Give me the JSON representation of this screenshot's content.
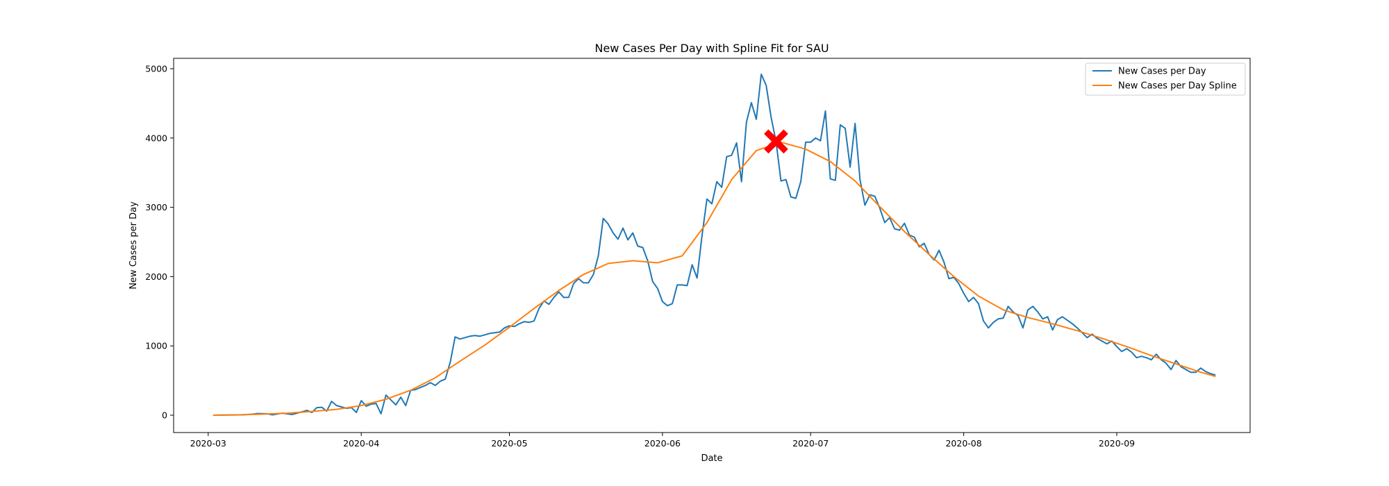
{
  "chart_data": {
    "type": "line",
    "title": "New Cases Per Day with Spline Fit for SAU",
    "xlabel": "Date",
    "ylabel": "New Cases per Day",
    "x_axis": {
      "type": "date",
      "range": [
        "2020-02-23",
        "2020-09-28"
      ],
      "ticks": [
        "2020-03-01",
        "2020-04-01",
        "2020-05-01",
        "2020-06-01",
        "2020-07-01",
        "2020-08-01",
        "2020-09-01"
      ],
      "tick_labels": [
        "2020-03",
        "2020-04",
        "2020-05",
        "2020-06",
        "2020-07",
        "2020-08",
        "2020-09"
      ]
    },
    "y_axis": {
      "range": [
        -250,
        5150
      ],
      "ticks": [
        0,
        1000,
        2000,
        3000,
        4000,
        5000
      ],
      "tick_labels": [
        "0",
        "1000",
        "2000",
        "3000",
        "4000",
        "5000"
      ]
    },
    "grid": false,
    "legend_position": "top-right",
    "colors": {
      "raw": "#1f77b4",
      "spline": "#ff7f0e",
      "peak_marker": "#ff0000"
    },
    "series": [
      {
        "name": "New Cases per Day",
        "color": "#1f77b4",
        "points": [
          [
            "2020-03-02",
            0
          ],
          [
            "2020-03-05",
            2
          ],
          [
            "2020-03-08",
            5
          ],
          [
            "2020-03-10",
            15
          ],
          [
            "2020-03-11",
            25
          ],
          [
            "2020-03-13",
            20
          ],
          [
            "2020-03-14",
            5
          ],
          [
            "2020-03-16",
            30
          ],
          [
            "2020-03-18",
            10
          ],
          [
            "2020-03-20",
            50
          ],
          [
            "2020-03-21",
            70
          ],
          [
            "2020-03-22",
            40
          ],
          [
            "2020-03-23",
            110
          ],
          [
            "2020-03-24",
            115
          ],
          [
            "2020-03-25",
            60
          ],
          [
            "2020-03-26",
            200
          ],
          [
            "2020-03-27",
            140
          ],
          [
            "2020-03-28",
            120
          ],
          [
            "2020-03-29",
            100
          ],
          [
            "2020-03-30",
            110
          ],
          [
            "2020-03-31",
            40
          ],
          [
            "2020-04-01",
            210
          ],
          [
            "2020-04-02",
            130
          ],
          [
            "2020-04-03",
            160
          ],
          [
            "2020-04-04",
            170
          ],
          [
            "2020-04-05",
            20
          ],
          [
            "2020-04-06",
            290
          ],
          [
            "2020-04-07",
            220
          ],
          [
            "2020-04-08",
            150
          ],
          [
            "2020-04-09",
            260
          ],
          [
            "2020-04-10",
            140
          ],
          [
            "2020-04-11",
            360
          ],
          [
            "2020-04-12",
            370
          ],
          [
            "2020-04-13",
            400
          ],
          [
            "2020-04-14",
            430
          ],
          [
            "2020-04-15",
            470
          ],
          [
            "2020-04-16",
            430
          ],
          [
            "2020-04-17",
            490
          ],
          [
            "2020-04-18",
            520
          ],
          [
            "2020-04-19",
            760
          ],
          [
            "2020-04-20",
            1130
          ],
          [
            "2020-04-21",
            1100
          ],
          [
            "2020-04-22",
            1120
          ],
          [
            "2020-04-23",
            1140
          ],
          [
            "2020-04-24",
            1150
          ],
          [
            "2020-04-25",
            1140
          ],
          [
            "2020-04-26",
            1160
          ],
          [
            "2020-04-27",
            1180
          ],
          [
            "2020-04-28",
            1190
          ],
          [
            "2020-04-29",
            1200
          ],
          [
            "2020-04-30",
            1260
          ],
          [
            "2020-05-01",
            1290
          ],
          [
            "2020-05-02",
            1280
          ],
          [
            "2020-05-03",
            1320
          ],
          [
            "2020-05-04",
            1350
          ],
          [
            "2020-05-05",
            1340
          ],
          [
            "2020-05-06",
            1360
          ],
          [
            "2020-05-07",
            1540
          ],
          [
            "2020-05-08",
            1650
          ],
          [
            "2020-05-09",
            1600
          ],
          [
            "2020-05-10",
            1700
          ],
          [
            "2020-05-11",
            1780
          ],
          [
            "2020-05-12",
            1700
          ],
          [
            "2020-05-13",
            1700
          ],
          [
            "2020-05-14",
            1900
          ],
          [
            "2020-05-15",
            1970
          ],
          [
            "2020-05-16",
            1910
          ],
          [
            "2020-05-17",
            1910
          ],
          [
            "2020-05-18",
            2030
          ],
          [
            "2020-05-19",
            2300
          ],
          [
            "2020-05-20",
            2840
          ],
          [
            "2020-05-21",
            2760
          ],
          [
            "2020-05-22",
            2630
          ],
          [
            "2020-05-23",
            2540
          ],
          [
            "2020-05-24",
            2700
          ],
          [
            "2020-05-25",
            2530
          ],
          [
            "2020-05-26",
            2630
          ],
          [
            "2020-05-27",
            2440
          ],
          [
            "2020-05-28",
            2420
          ],
          [
            "2020-05-29",
            2230
          ],
          [
            "2020-05-30",
            1930
          ],
          [
            "2020-05-31",
            1830
          ],
          [
            "2020-06-01",
            1640
          ],
          [
            "2020-06-02",
            1580
          ],
          [
            "2020-06-03",
            1610
          ],
          [
            "2020-06-04",
            1880
          ],
          [
            "2020-06-05",
            1880
          ],
          [
            "2020-06-06",
            1870
          ],
          [
            "2020-06-07",
            2170
          ],
          [
            "2020-06-08",
            1980
          ],
          [
            "2020-06-09",
            2590
          ],
          [
            "2020-06-10",
            3120
          ],
          [
            "2020-06-11",
            3050
          ],
          [
            "2020-06-12",
            3370
          ],
          [
            "2020-06-13",
            3290
          ],
          [
            "2020-06-14",
            3730
          ],
          [
            "2020-06-15",
            3750
          ],
          [
            "2020-06-16",
            3930
          ],
          [
            "2020-06-17",
            3370
          ],
          [
            "2020-06-18",
            4230
          ],
          [
            "2020-06-19",
            4510
          ],
          [
            "2020-06-20",
            4270
          ],
          [
            "2020-06-21",
            4920
          ],
          [
            "2020-06-22",
            4760
          ],
          [
            "2020-06-23",
            4300
          ],
          [
            "2020-06-24",
            3950
          ],
          [
            "2020-06-25",
            3380
          ],
          [
            "2020-06-26",
            3400
          ],
          [
            "2020-06-27",
            3150
          ],
          [
            "2020-06-28",
            3130
          ],
          [
            "2020-06-29",
            3370
          ],
          [
            "2020-06-30",
            3940
          ],
          [
            "2020-07-01",
            3940
          ],
          [
            "2020-07-02",
            4000
          ],
          [
            "2020-07-03",
            3960
          ],
          [
            "2020-07-04",
            4390
          ],
          [
            "2020-07-05",
            3410
          ],
          [
            "2020-07-06",
            3390
          ],
          [
            "2020-07-07",
            4190
          ],
          [
            "2020-07-08",
            4140
          ],
          [
            "2020-07-09",
            3580
          ],
          [
            "2020-07-10",
            4210
          ],
          [
            "2020-07-11",
            3400
          ],
          [
            "2020-07-12",
            3030
          ],
          [
            "2020-07-13",
            3180
          ],
          [
            "2020-07-14",
            3160
          ],
          [
            "2020-07-15",
            2990
          ],
          [
            "2020-07-16",
            2780
          ],
          [
            "2020-07-17",
            2850
          ],
          [
            "2020-07-18",
            2690
          ],
          [
            "2020-07-19",
            2670
          ],
          [
            "2020-07-20",
            2770
          ],
          [
            "2020-07-21",
            2600
          ],
          [
            "2020-07-22",
            2570
          ],
          [
            "2020-07-23",
            2430
          ],
          [
            "2020-07-24",
            2480
          ],
          [
            "2020-07-25",
            2320
          ],
          [
            "2020-07-26",
            2240
          ],
          [
            "2020-07-27",
            2380
          ],
          [
            "2020-07-28",
            2210
          ],
          [
            "2020-07-29",
            1970
          ],
          [
            "2020-07-30",
            1990
          ],
          [
            "2020-07-31",
            1900
          ],
          [
            "2020-08-01",
            1760
          ],
          [
            "2020-08-02",
            1640
          ],
          [
            "2020-08-03",
            1700
          ],
          [
            "2020-08-04",
            1610
          ],
          [
            "2020-08-05",
            1360
          ],
          [
            "2020-08-06",
            1260
          ],
          [
            "2020-08-07",
            1340
          ],
          [
            "2020-08-08",
            1390
          ],
          [
            "2020-08-09",
            1400
          ],
          [
            "2020-08-10",
            1570
          ],
          [
            "2020-08-11",
            1490
          ],
          [
            "2020-08-12",
            1440
          ],
          [
            "2020-08-13",
            1260
          ],
          [
            "2020-08-14",
            1520
          ],
          [
            "2020-08-15",
            1570
          ],
          [
            "2020-08-16",
            1490
          ],
          [
            "2020-08-17",
            1390
          ],
          [
            "2020-08-18",
            1420
          ],
          [
            "2020-08-19",
            1230
          ],
          [
            "2020-08-20",
            1380
          ],
          [
            "2020-08-21",
            1420
          ],
          [
            "2020-08-22",
            1370
          ],
          [
            "2020-08-23",
            1320
          ],
          [
            "2020-08-24",
            1260
          ],
          [
            "2020-08-25",
            1190
          ],
          [
            "2020-08-26",
            1120
          ],
          [
            "2020-08-27",
            1170
          ],
          [
            "2020-08-28",
            1110
          ],
          [
            "2020-08-29",
            1070
          ],
          [
            "2020-08-30",
            1030
          ],
          [
            "2020-08-31",
            1070
          ],
          [
            "2020-09-01",
            990
          ],
          [
            "2020-09-02",
            920
          ],
          [
            "2020-09-03",
            960
          ],
          [
            "2020-09-04",
            910
          ],
          [
            "2020-09-05",
            830
          ],
          [
            "2020-09-06",
            850
          ],
          [
            "2020-09-07",
            830
          ],
          [
            "2020-09-08",
            800
          ],
          [
            "2020-09-09",
            880
          ],
          [
            "2020-09-10",
            800
          ],
          [
            "2020-09-11",
            750
          ],
          [
            "2020-09-12",
            660
          ],
          [
            "2020-09-13",
            790
          ],
          [
            "2020-09-14",
            700
          ],
          [
            "2020-09-15",
            660
          ],
          [
            "2020-09-16",
            620
          ],
          [
            "2020-09-17",
            620
          ],
          [
            "2020-09-18",
            680
          ],
          [
            "2020-09-19",
            630
          ],
          [
            "2020-09-20",
            600
          ],
          [
            "2020-09-21",
            580
          ]
        ]
      },
      {
        "name": "New Cases per Day Spline",
        "color": "#ff7f0e",
        "points": [
          [
            "2020-03-02",
            0
          ],
          [
            "2020-03-07",
            5
          ],
          [
            "2020-03-12",
            15
          ],
          [
            "2020-03-17",
            30
          ],
          [
            "2020-03-22",
            55
          ],
          [
            "2020-03-27",
            85
          ],
          [
            "2020-04-01",
            140
          ],
          [
            "2020-04-06",
            230
          ],
          [
            "2020-04-11",
            360
          ],
          [
            "2020-04-16",
            540
          ],
          [
            "2020-04-21",
            780
          ],
          [
            "2020-04-26",
            1010
          ],
          [
            "2020-05-01",
            1270
          ],
          [
            "2020-05-06",
            1540
          ],
          [
            "2020-05-11",
            1800
          ],
          [
            "2020-05-16",
            2030
          ],
          [
            "2020-05-21",
            2190
          ],
          [
            "2020-05-26",
            2230
          ],
          [
            "2020-05-31",
            2200
          ],
          [
            "2020-06-05",
            2300
          ],
          [
            "2020-06-10",
            2780
          ],
          [
            "2020-06-15",
            3400
          ],
          [
            "2020-06-20",
            3820
          ],
          [
            "2020-06-25",
            3940
          ],
          [
            "2020-06-30",
            3840
          ],
          [
            "2020-07-05",
            3660
          ],
          [
            "2020-07-10",
            3380
          ],
          [
            "2020-07-15",
            3010
          ],
          [
            "2020-07-20",
            2650
          ],
          [
            "2020-07-25",
            2320
          ],
          [
            "2020-07-30",
            2000
          ],
          [
            "2020-08-04",
            1720
          ],
          [
            "2020-08-09",
            1520
          ],
          [
            "2020-08-14",
            1410
          ],
          [
            "2020-08-19",
            1320
          ],
          [
            "2020-08-24",
            1220
          ],
          [
            "2020-08-29",
            1110
          ],
          [
            "2020-09-03",
            990
          ],
          [
            "2020-09-08",
            860
          ],
          [
            "2020-09-13",
            740
          ],
          [
            "2020-09-18",
            620
          ],
          [
            "2020-09-21",
            560
          ]
        ]
      }
    ],
    "annotations": [
      {
        "type": "marker",
        "shape": "X",
        "color": "#ff0000",
        "x": "2020-06-24",
        "y": 3950
      }
    ]
  }
}
